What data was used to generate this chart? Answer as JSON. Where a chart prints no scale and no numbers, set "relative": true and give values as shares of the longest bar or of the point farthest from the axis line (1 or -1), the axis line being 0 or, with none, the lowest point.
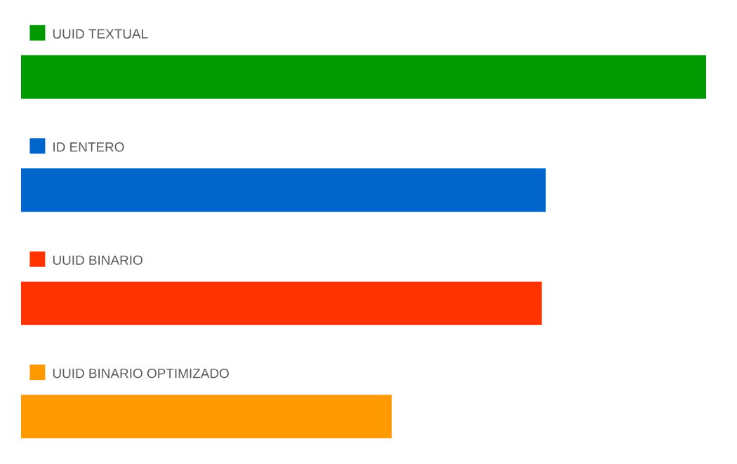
{
  "chart_data": {
    "type": "bar",
    "orientation": "horizontal",
    "relative": true,
    "categories": [
      "UUID TEXTUAL",
      "ID ENTERO",
      "UUID BINARIO",
      "UUID BINARIO OPTIMIZADO"
    ],
    "values": [
      1,
      0.766,
      0.76,
      0.541
    ],
    "colors": [
      "#009900",
      "#0066cc",
      "#ff3300",
      "#ff9900"
    ]
  }
}
